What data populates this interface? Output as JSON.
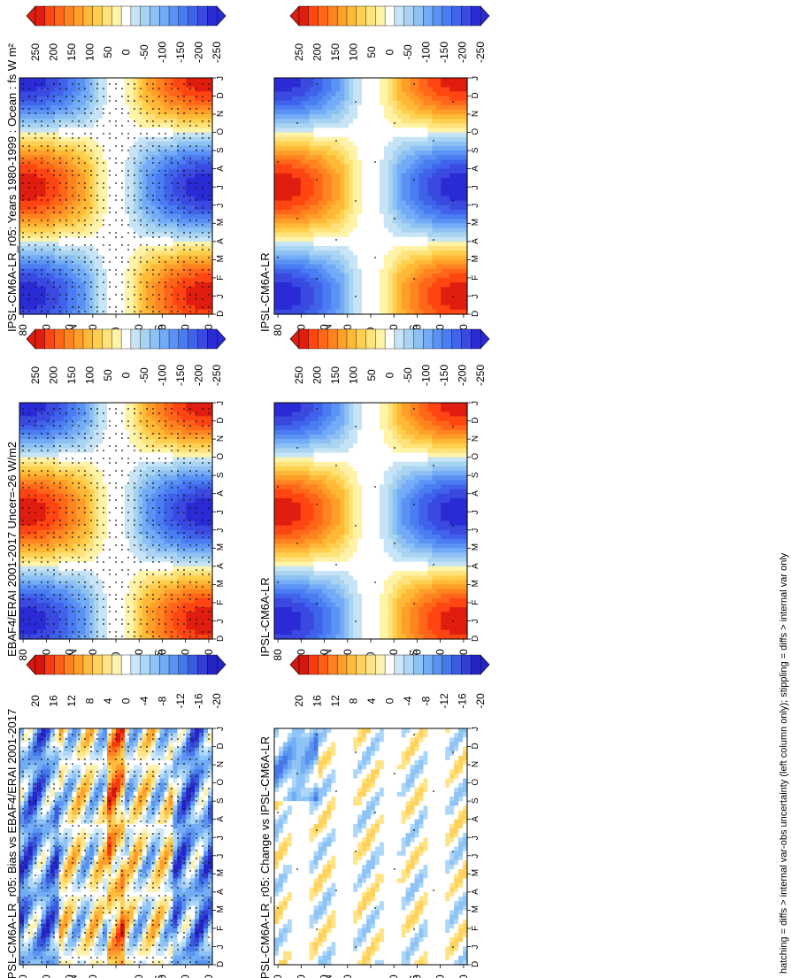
{
  "footer": "hatching = diffs > internal var-obs uncertainty (left column only); stippling = diffs > internal var only",
  "colors": {
    "main_scale": [
      "#2b2bd6",
      "#3a49e0",
      "#3f63eb",
      "#4a7cf2",
      "#5b93f5",
      "#74abf7",
      "#8dc1f4",
      "#a8d4f2",
      "#c6e4f5",
      "#ffffff",
      "#fff3a8",
      "#ffe27a",
      "#ffd04f",
      "#ffb937",
      "#ff9f2a",
      "#ff8420",
      "#ff6618",
      "#ff4612",
      "#e01d0f"
    ],
    "diff_scale": [
      "#2525c6",
      "#333fd3",
      "#3a5bdf",
      "#4778ea",
      "#5a93f0",
      "#72acf4",
      "#8ec3f6",
      "#acd7f8",
      "#cce7fa",
      "#ffffff",
      "#fff2b0",
      "#ffe487",
      "#ffd25e",
      "#ffbb3d",
      "#ff9e2b",
      "#ff8020",
      "#ff5e17",
      "#f73b10",
      "#d8170c"
    ]
  },
  "chart_data": [
    {
      "type": "heatmap",
      "title": "IPSL-CM6A-LR_r05: Years 1980-1999 : Ocean : fs W m²",
      "x_categories": [
        "D",
        "J",
        "F",
        "M",
        "A",
        "M",
        "J",
        "J",
        "A",
        "S",
        "O",
        "N",
        "D",
        "J"
      ],
      "y_ticks": [
        "80",
        "60",
        "40",
        "20",
        "0",
        "20",
        "40",
        "60",
        "80"
      ],
      "y_hem_labels": [
        "°N",
        "°S"
      ],
      "ylim": [
        -90,
        90
      ],
      "colorbar_ticks": [
        "250",
        "200",
        "150",
        "100",
        "50",
        "0",
        "-50",
        "-100",
        "-150",
        "-200",
        "-250"
      ],
      "stippling": "dense",
      "field": "seasonal cycle, positive (warm) in summer hemisphere, max ~250 near 40°N in Jun, min ~-250 near 60°S"
    },
    {
      "type": "heatmap",
      "title": "IPSL-CM6A-LR",
      "x_categories": [
        "D",
        "J",
        "F",
        "M",
        "A",
        "M",
        "J",
        "J",
        "A",
        "S",
        "O",
        "N",
        "D",
        "J"
      ],
      "y_ticks": [
        "80",
        "60",
        "40",
        "20",
        "0",
        "20",
        "40",
        "60",
        "80"
      ],
      "y_hem_labels": [
        "°N",
        "°S"
      ],
      "ylim": [
        -90,
        90
      ],
      "colorbar_ticks": [
        "250",
        "200",
        "150",
        "100",
        "50",
        "0",
        "-50",
        "-100",
        "-150",
        "-200",
        "-250"
      ],
      "stippling": "sparse"
    },
    {
      "type": "heatmap",
      "title": "EBAF4/ERAI 2001-2017 Uncer=-26 W/m2",
      "x_categories": [
        "D",
        "J",
        "F",
        "M",
        "A",
        "M",
        "J",
        "J",
        "A",
        "S",
        "O",
        "N",
        "D",
        "J"
      ],
      "y_ticks": [
        "80",
        "60",
        "40",
        "20",
        "0",
        "20",
        "40",
        "60",
        "80"
      ],
      "y_hem_labels": [
        "°N",
        "°S"
      ],
      "ylim": [
        -90,
        90
      ],
      "colorbar_ticks": [
        "250",
        "200",
        "150",
        "100",
        "50",
        "0",
        "-50",
        "-100",
        "-150",
        "-200",
        "-250"
      ],
      "stippling": "dense"
    },
    {
      "type": "heatmap",
      "title": "IPSL-CM6A-LR",
      "x_categories": [
        "D",
        "J",
        "F",
        "M",
        "A",
        "M",
        "J",
        "J",
        "A",
        "S",
        "O",
        "N",
        "D",
        "J"
      ],
      "y_ticks": [
        "80",
        "60",
        "40",
        "20",
        "0",
        "20",
        "40",
        "60",
        "80"
      ],
      "y_hem_labels": [
        "°N",
        "°S"
      ],
      "ylim": [
        -90,
        90
      ],
      "colorbar_ticks": [
        "250",
        "200",
        "150",
        "100",
        "50",
        "0",
        "-50",
        "-100",
        "-150",
        "-200",
        "-250"
      ],
      "stippling": "sparse"
    },
    {
      "type": "heatmap",
      "title": "IPSL-CM6A-LR_r05: Bias vs EBAF4/ERAI 2001-2017",
      "x_categories": [
        "D",
        "J",
        "F",
        "M",
        "A",
        "M",
        "J",
        "J",
        "A",
        "S",
        "O",
        "N",
        "D",
        "J"
      ],
      "y_ticks": [
        "80",
        "60",
        "40",
        "20",
        "0",
        "20",
        "40",
        "60",
        "80"
      ],
      "y_hem_labels": [
        "°N",
        "°S"
      ],
      "ylim": [
        -90,
        90
      ],
      "colorbar_ticks": [
        "20",
        "16",
        "12",
        "8",
        "4",
        "0",
        "-4",
        "-8",
        "-12",
        "-16",
        "-20"
      ],
      "stippling": "dense"
    },
    {
      "type": "heatmap",
      "title": "IPSL-CM6A-LR_r05: Change vs IPSL-CM6A-LR",
      "x_categories": [
        "D",
        "J",
        "F",
        "M",
        "A",
        "M",
        "J",
        "J",
        "A",
        "S",
        "O",
        "N",
        "D",
        "J"
      ],
      "y_ticks": [
        "80",
        "60",
        "40",
        "20",
        "0",
        "20",
        "40",
        "60",
        "80"
      ],
      "y_hem_labels": [
        "°N",
        "°S"
      ],
      "ylim": [
        -90,
        90
      ],
      "colorbar_ticks": [
        "20",
        "16",
        "12",
        "8",
        "4",
        "0",
        "-4",
        "-8",
        "-12",
        "-16",
        "-20"
      ],
      "stippling": "sparse"
    }
  ]
}
